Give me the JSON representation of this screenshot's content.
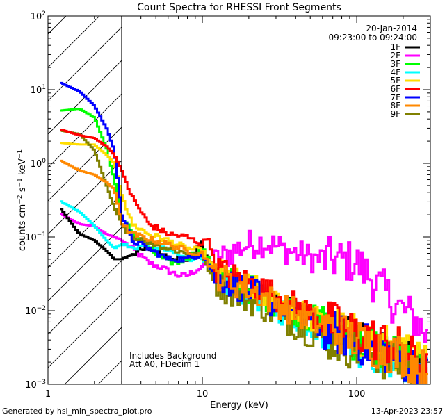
{
  "chart_data": {
    "type": "line",
    "title": "Count Spectra for RHESSI Front Segments",
    "xlabel": "Energy (keV)",
    "ylabel_parts": {
      "counts": "counts cm",
      "m2": "−2",
      "s": " s",
      "m1a": "−1",
      "kev": " keV",
      "m1b": "−1"
    },
    "xscale": "log",
    "yscale": "log",
    "xlim": [
      1,
      300
    ],
    "ylim": [
      0.001,
      100
    ],
    "x_tick_labels": [
      "1",
      "10",
      "100"
    ],
    "y_tick_labels": [
      {
        "base": "10",
        "exp": "−3",
        "value": 0.001
      },
      {
        "base": "10",
        "exp": "−2",
        "value": 0.01
      },
      {
        "base": "10",
        "exp": "−1",
        "value": 0.1
      },
      {
        "base": "10",
        "exp": "0",
        "value": 1
      },
      {
        "base": "10",
        "exp": "1",
        "value": 10
      },
      {
        "base": "10",
        "exp": "2",
        "value": 100
      }
    ],
    "date": "20-Jan-2014",
    "time_range": "09:23:00 to 09:24:00",
    "hatched_region_max_energy": 3,
    "annotations": [
      "Includes Background",
      "Att A0, FDecim 1"
    ],
    "noise_fraction": 0.08,
    "series": [
      {
        "name": "1F",
        "color": "#000000",
        "points": [
          [
            1.2,
            0.25
          ],
          [
            1.6,
            0.11
          ],
          [
            2.0,
            0.09
          ],
          [
            2.4,
            0.065
          ],
          [
            2.7,
            0.05
          ],
          [
            3.0,
            0.05
          ],
          [
            3.5,
            0.06
          ],
          [
            4.5,
            0.07
          ],
          [
            6,
            0.055
          ],
          [
            8,
            0.05
          ],
          [
            10,
            0.08
          ],
          [
            12,
            0.03
          ],
          [
            15,
            0.025
          ],
          [
            20,
            0.02
          ],
          [
            30,
            0.012
          ],
          [
            50,
            0.007
          ],
          [
            100,
            0.004
          ],
          [
            200,
            0.0025
          ],
          [
            290,
            0.0014
          ]
        ]
      },
      {
        "name": "2F",
        "color": "#ff00ff",
        "points": [
          [
            1.2,
            0.21
          ],
          [
            1.6,
            0.15
          ],
          [
            2.0,
            0.14
          ],
          [
            2.4,
            0.11
          ],
          [
            2.7,
            0.1
          ],
          [
            3.0,
            0.09
          ],
          [
            3.5,
            0.07
          ],
          [
            4.5,
            0.045
          ],
          [
            6,
            0.035
          ],
          [
            7,
            0.03
          ],
          [
            8,
            0.03
          ],
          [
            10,
            0.04
          ],
          [
            13,
            0.05
          ],
          [
            16,
            0.065
          ],
          [
            20,
            0.08
          ],
          [
            25,
            0.085
          ],
          [
            30,
            0.075
          ],
          [
            40,
            0.06
          ],
          [
            55,
            0.05
          ],
          [
            70,
            0.05
          ],
          [
            100,
            0.045
          ],
          [
            130,
            0.025
          ],
          [
            180,
            0.012
          ],
          [
            250,
            0.007
          ],
          [
            290,
            0.004
          ]
        ]
      },
      {
        "name": "3F",
        "color": "#00ff00",
        "points": [
          [
            1.2,
            5.2
          ],
          [
            1.6,
            5.5
          ],
          [
            2.0,
            4.2
          ],
          [
            2.4,
            1.6
          ],
          [
            2.7,
            0.6
          ],
          [
            3.0,
            0.18
          ],
          [
            3.5,
            0.12
          ],
          [
            4.5,
            0.07
          ],
          [
            6,
            0.045
          ],
          [
            7,
            0.045
          ],
          [
            9,
            0.06
          ],
          [
            10,
            0.07
          ],
          [
            12,
            0.035
          ],
          [
            15,
            0.026
          ],
          [
            20,
            0.02
          ],
          [
            30,
            0.013
          ],
          [
            50,
            0.008
          ],
          [
            100,
            0.004
          ],
          [
            200,
            0.0023
          ],
          [
            290,
            0.0014
          ]
        ]
      },
      {
        "name": "4F",
        "color": "#00ffff",
        "points": [
          [
            1.2,
            0.31
          ],
          [
            1.6,
            0.22
          ],
          [
            2.0,
            0.14
          ],
          [
            2.4,
            0.09
          ],
          [
            2.7,
            0.07
          ],
          [
            3.0,
            0.08
          ],
          [
            3.5,
            0.07
          ],
          [
            4.5,
            0.08
          ],
          [
            6,
            0.065
          ],
          [
            8,
            0.05
          ],
          [
            10,
            0.055
          ],
          [
            12,
            0.028
          ],
          [
            15,
            0.022
          ],
          [
            20,
            0.018
          ],
          [
            30,
            0.011
          ],
          [
            50,
            0.0065
          ],
          [
            100,
            0.0035
          ],
          [
            200,
            0.002
          ],
          [
            290,
            0.0013
          ]
        ]
      },
      {
        "name": "5F",
        "color": "#ffdd00",
        "points": [
          [
            1.2,
            1.9
          ],
          [
            1.6,
            1.8
          ],
          [
            2.0,
            1.8
          ],
          [
            2.4,
            1.3
          ],
          [
            2.7,
            1.0
          ],
          [
            3.0,
            0.38
          ],
          [
            3.5,
            0.15
          ],
          [
            4.5,
            0.11
          ],
          [
            6,
            0.09
          ],
          [
            8,
            0.07
          ],
          [
            10,
            0.065
          ],
          [
            12,
            0.035
          ],
          [
            15,
            0.027
          ],
          [
            20,
            0.021
          ],
          [
            30,
            0.014
          ],
          [
            50,
            0.008
          ],
          [
            100,
            0.0045
          ],
          [
            200,
            0.0028
          ],
          [
            290,
            0.0018
          ]
        ]
      },
      {
        "name": "6F",
        "color": "#ff0000",
        "points": [
          [
            1.2,
            2.9
          ],
          [
            1.6,
            2.4
          ],
          [
            2.0,
            2.2
          ],
          [
            2.4,
            1.7
          ],
          [
            2.7,
            1.3
          ],
          [
            3.0,
            0.8
          ],
          [
            3.5,
            0.35
          ],
          [
            4.5,
            0.15
          ],
          [
            6,
            0.11
          ],
          [
            8,
            0.1
          ],
          [
            10,
            0.08
          ],
          [
            11,
            0.1
          ],
          [
            12,
            0.04
          ],
          [
            15,
            0.03
          ],
          [
            20,
            0.024
          ],
          [
            30,
            0.016
          ],
          [
            50,
            0.009
          ],
          [
            100,
            0.005
          ],
          [
            200,
            0.003
          ],
          [
            290,
            0.0015
          ]
        ]
      },
      {
        "name": "7F",
        "color": "#0000ff",
        "points": [
          [
            1.2,
            12.5
          ],
          [
            1.6,
            9.5
          ],
          [
            2.0,
            6.0
          ],
          [
            2.4,
            3.0
          ],
          [
            2.7,
            1.5
          ],
          [
            3.0,
            0.2
          ],
          [
            3.5,
            0.09
          ],
          [
            4.5,
            0.07
          ],
          [
            6,
            0.05
          ],
          [
            8,
            0.05
          ],
          [
            10,
            0.06
          ],
          [
            12,
            0.03
          ],
          [
            15,
            0.024
          ],
          [
            20,
            0.019
          ],
          [
            30,
            0.012
          ],
          [
            50,
            0.007
          ],
          [
            100,
            0.0038
          ],
          [
            200,
            0.0022
          ],
          [
            290,
            0.0013
          ]
        ]
      },
      {
        "name": "8F",
        "color": "#ff8800",
        "points": [
          [
            1.2,
            1.1
          ],
          [
            1.6,
            0.8
          ],
          [
            2.0,
            0.7
          ],
          [
            2.4,
            0.55
          ],
          [
            2.7,
            0.45
          ],
          [
            3.0,
            0.15
          ],
          [
            3.5,
            0.11
          ],
          [
            4.5,
            0.095
          ],
          [
            6,
            0.08
          ],
          [
            8,
            0.065
          ],
          [
            10,
            0.06
          ],
          [
            12,
            0.032
          ],
          [
            15,
            0.025
          ],
          [
            20,
            0.02
          ],
          [
            30,
            0.013
          ],
          [
            50,
            0.0075
          ],
          [
            100,
            0.004
          ],
          [
            200,
            0.0024
          ],
          [
            290,
            0.0014
          ]
        ]
      },
      {
        "name": "9F",
        "color": "#808000",
        "points": [
          [
            1.2,
            2.8
          ],
          [
            1.6,
            2.5
          ],
          [
            2.0,
            1.5
          ],
          [
            2.4,
            0.5
          ],
          [
            2.7,
            0.25
          ],
          [
            3.0,
            0.15
          ],
          [
            3.5,
            0.1
          ],
          [
            4.5,
            0.085
          ],
          [
            6,
            0.07
          ],
          [
            8,
            0.06
          ],
          [
            10,
            0.055
          ],
          [
            12,
            0.025
          ],
          [
            15,
            0.018
          ],
          [
            20,
            0.014
          ],
          [
            30,
            0.009
          ],
          [
            50,
            0.005
          ],
          [
            100,
            0.003
          ],
          [
            200,
            0.0018
          ],
          [
            290,
            0.0012
          ]
        ]
      }
    ]
  },
  "footer": {
    "generated_by": "Generated by hsi_min_spectra_plot.pro",
    "timestamp": "13-Apr-2023 23:57"
  }
}
